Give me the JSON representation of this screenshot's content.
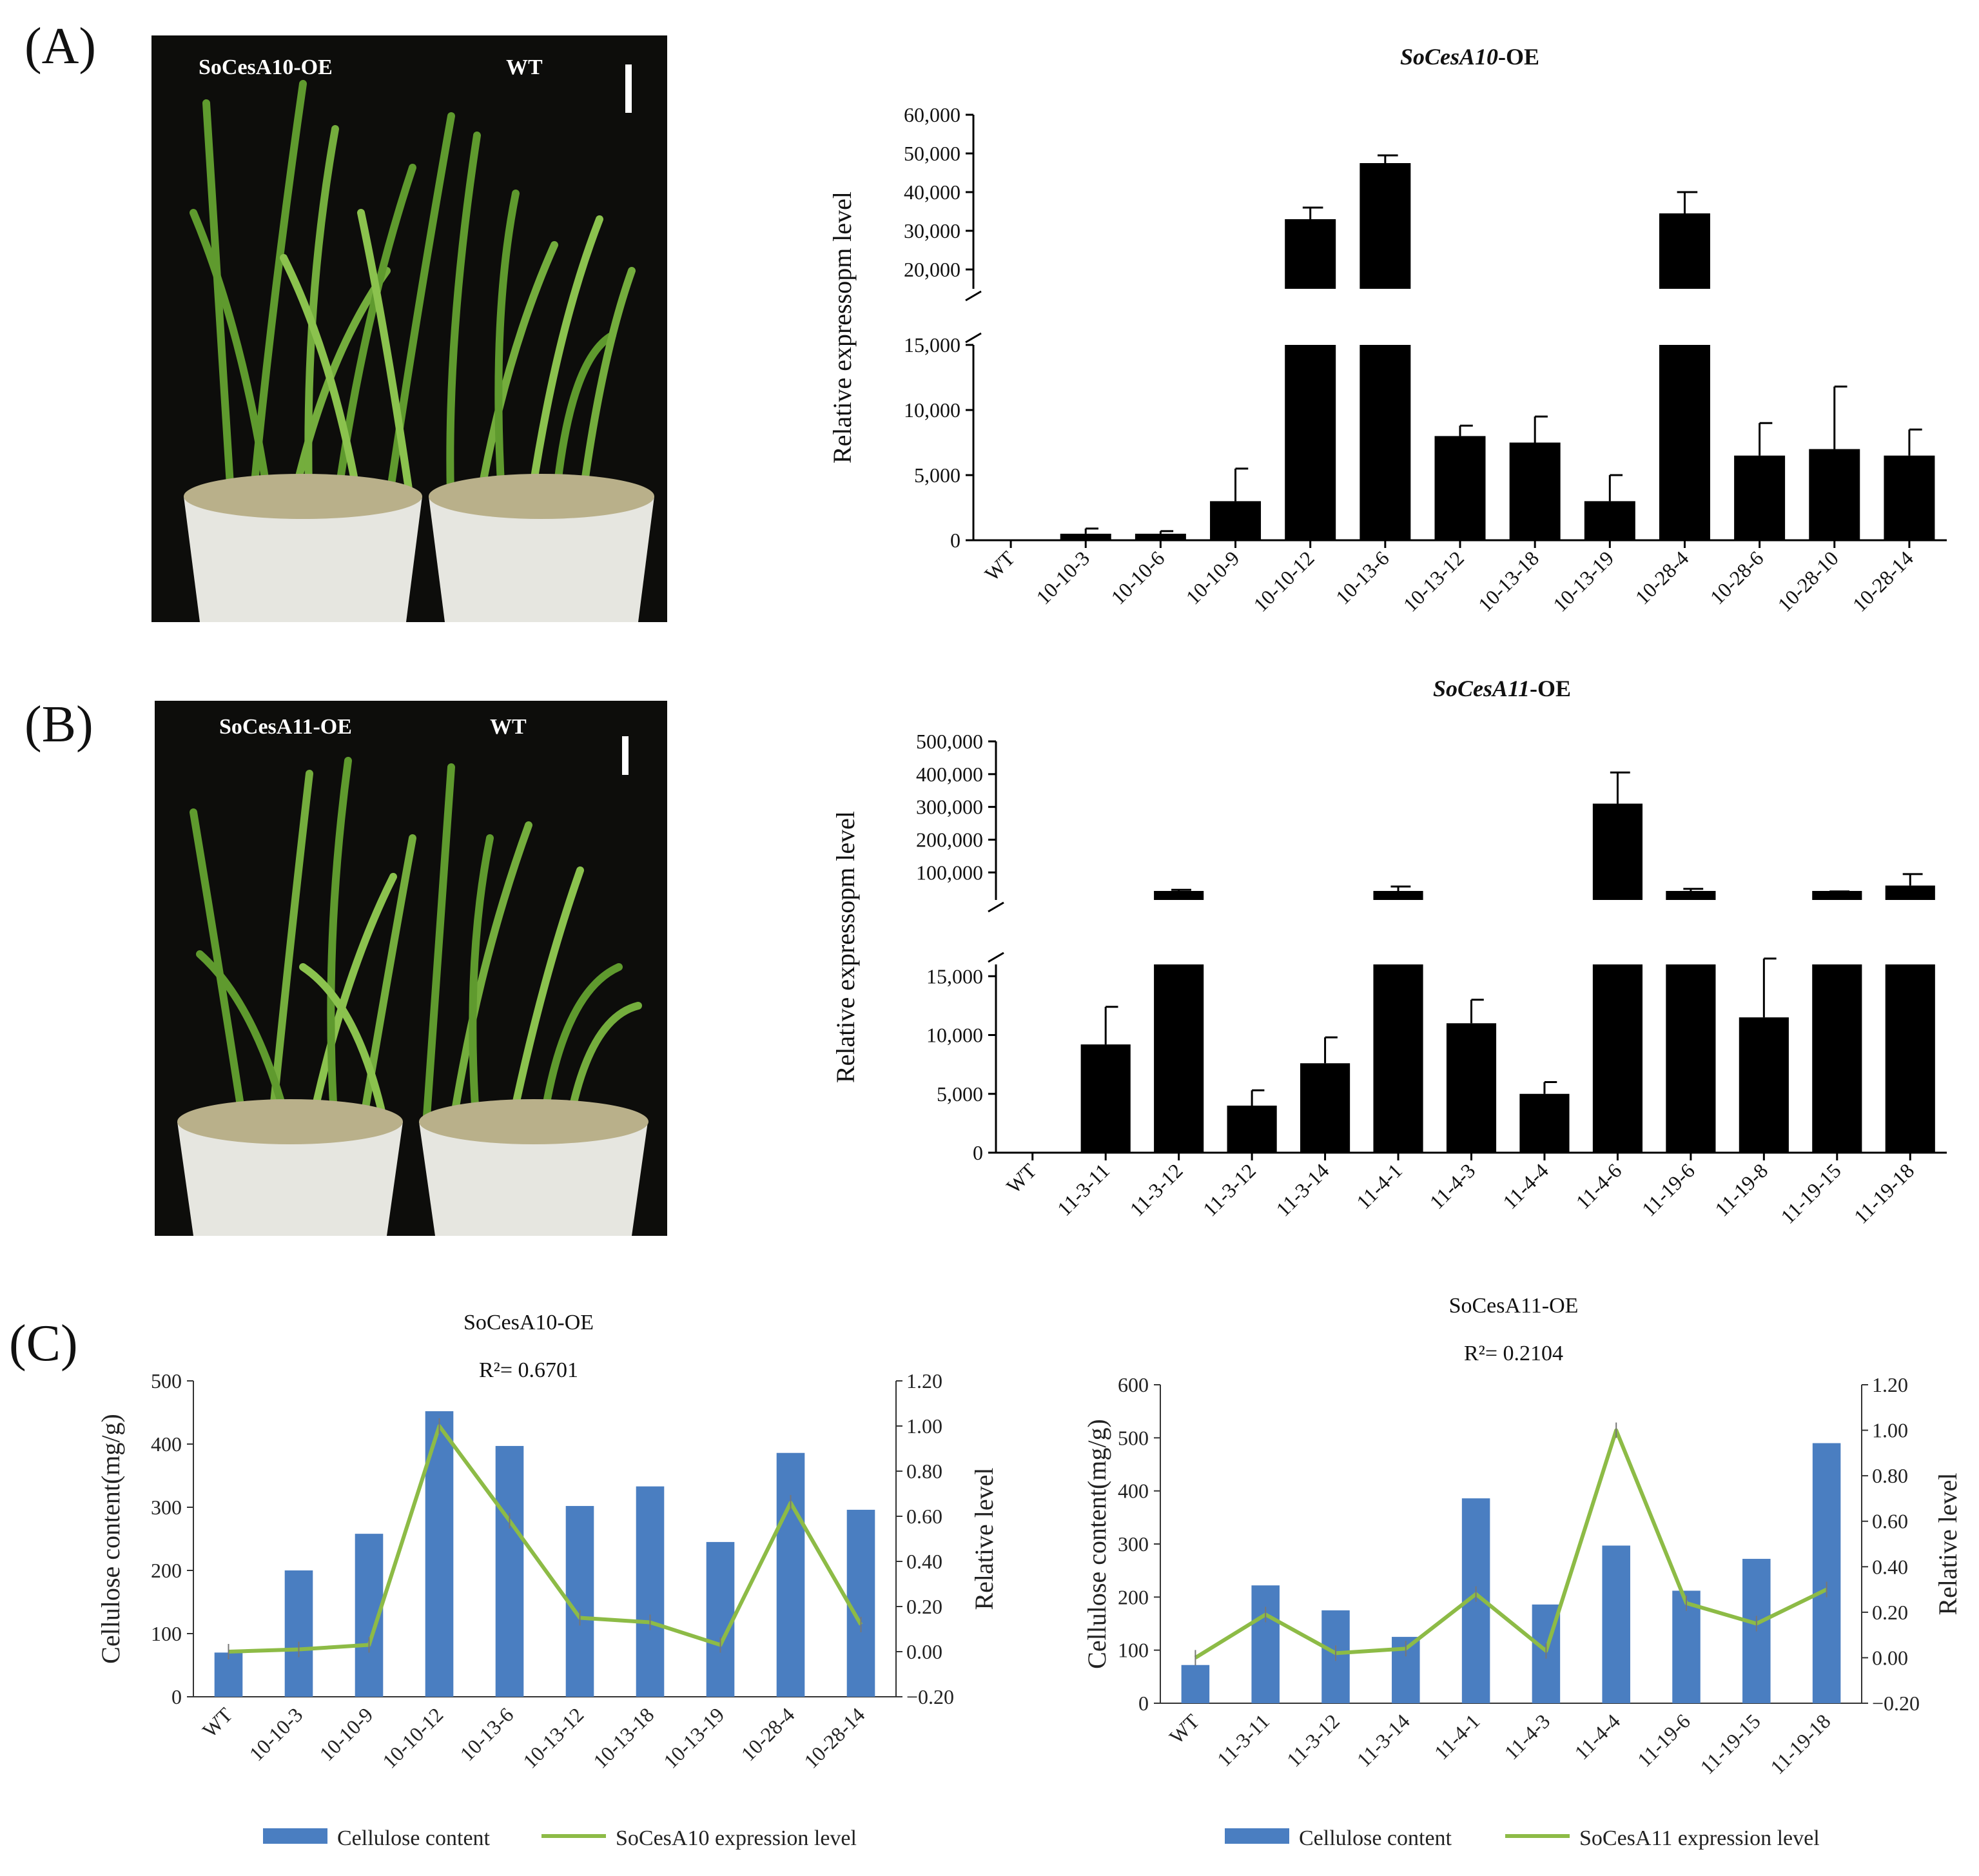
{
  "panels": {
    "a_label": "(A)",
    "b_label": "(B)",
    "c_label": "(C)"
  },
  "photos": {
    "a": {
      "left_label": "SoCesA10-OE",
      "right_label": "WT"
    },
    "b": {
      "left_label": "SoCesA11-OE",
      "right_label": "WT"
    }
  },
  "colors": {
    "bar_black": "#000000",
    "bar_blue": "#4a7ec1",
    "line_green": "#8dbb46",
    "photo_bg": "#0d0d0b"
  },
  "chart_data": [
    {
      "id": "A",
      "type": "bar",
      "title_italic": "SoCesA10",
      "title_suffix": "-OE",
      "ylabel": "Relative expressopm level",
      "broken_axis": true,
      "lower_range": [
        0,
        15000
      ],
      "upper_range": [
        15000,
        60000
      ],
      "lower_ticks": [
        "0",
        "5,000",
        "10,000",
        "15,000"
      ],
      "upper_ticks": [
        "20,000",
        "30,000",
        "40,000",
        "50,000",
        "60,000"
      ],
      "lower_tick_values": [
        0,
        5000,
        10000,
        15000
      ],
      "upper_tick_values": [
        20000,
        30000,
        40000,
        50000,
        60000
      ],
      "categories": [
        "WT",
        "10-10-3",
        "10-10-6",
        "10-10-9",
        "10-10-12",
        "10-13-6",
        "10-13-12",
        "10-13-18",
        "10-13-19",
        "10-28-4",
        "10-28-6",
        "10-28-10",
        "10-28-14"
      ],
      "values": [
        0,
        500,
        500,
        3000,
        33000,
        47500,
        8000,
        7500,
        3000,
        34500,
        6500,
        7000,
        6500
      ],
      "errors": [
        0,
        400,
        200,
        2500,
        3000,
        2000,
        800,
        2000,
        2000,
        5500,
        2500,
        4800,
        2000
      ]
    },
    {
      "id": "B",
      "type": "bar",
      "title_italic": "SoCesA11",
      "title_suffix": "-OE",
      "ylabel": "Relative expressopm level",
      "broken_axis": true,
      "lower_range": [
        0,
        16000
      ],
      "upper_range": [
        16000,
        500000
      ],
      "lower_ticks": [
        "0",
        "5,000",
        "10,000",
        "15,000"
      ],
      "upper_ticks": [
        "100,000",
        "200,000",
        "300,000",
        "400,000",
        "500,000"
      ],
      "lower_tick_values": [
        0,
        5000,
        10000,
        15000
      ],
      "upper_tick_values": [
        100000,
        200000,
        300000,
        400000,
        500000
      ],
      "categories": [
        "WT",
        "11-3-11",
        "11-3-12",
        "11-3-12",
        "11-3-14",
        "11-4-1",
        "11-4-3",
        "11-4-4",
        "11-4-6",
        "11-19-6",
        "11-19-8",
        "11-19-15",
        "11-19-18"
      ],
      "values": [
        0,
        9200,
        32000,
        4000,
        7600,
        42000,
        11000,
        5000,
        310000,
        35000,
        11500,
        30000,
        60000
      ],
      "errors": [
        0,
        3200,
        15000,
        1300,
        2200,
        15000,
        2000,
        1000,
        95000,
        15000,
        5000,
        12000,
        35000
      ]
    },
    {
      "id": "C-left",
      "type": "bar+line",
      "title": "SoCesA10-OE",
      "r_squared": "R²= 0.6701",
      "ylabel_left": "Cellulose content(mg/g)",
      "ylabel_right": "Relative level",
      "ylim_left": [
        0,
        500
      ],
      "ylim_right": [
        -0.2,
        1.2
      ],
      "left_ticks": [
        "0",
        "100",
        "200",
        "300",
        "400",
        "500"
      ],
      "right_ticks": [
        "−0.20",
        "0.00",
        "0.20",
        "0.40",
        "0.60",
        "0.80",
        "1.00",
        "1.20"
      ],
      "categories": [
        "WT",
        "10-10-3",
        "10-10-9",
        "10-10-12",
        "10-13-6",
        "10-13-12",
        "10-13-18",
        "10-13-19",
        "10-28-4",
        "10-28-14"
      ],
      "series": [
        {
          "name": "Cellulose content",
          "kind": "bar",
          "values": [
            70,
            200,
            258,
            452,
            397,
            302,
            333,
            245,
            386,
            296
          ]
        },
        {
          "name": "SoCesA10 expression level",
          "kind": "line",
          "values": [
            0.0,
            0.01,
            0.03,
            1.0,
            0.58,
            0.15,
            0.13,
            0.03,
            0.66,
            0.12
          ]
        }
      ]
    },
    {
      "id": "C-right",
      "type": "bar+line",
      "title": "SoCesA11-OE",
      "r_squared": "R²= 0.2104",
      "ylabel_left": "Cellulose content(mg/g)",
      "ylabel_right": "Relative level",
      "ylim_left": [
        0,
        600
      ],
      "ylim_right": [
        -0.2,
        1.2
      ],
      "left_ticks": [
        "0",
        "100",
        "200",
        "300",
        "400",
        "500",
        "600"
      ],
      "right_ticks": [
        "−0.20",
        "0.00",
        "0.20",
        "0.40",
        "0.60",
        "0.80",
        "1.00",
        "1.20"
      ],
      "categories": [
        "WT",
        "11-3-11",
        "11-3-12",
        "11-3-14",
        "11-4-1",
        "11-4-3",
        "11-4-4",
        "11-19-6",
        "11-19-15",
        "11-19-18"
      ],
      "series": [
        {
          "name": "Cellulose content",
          "kind": "bar",
          "values": [
            72,
            222,
            175,
            125,
            386,
            186,
            297,
            212,
            272,
            490
          ]
        },
        {
          "name": "SoCesA11 expression level",
          "kind": "line",
          "values": [
            0.0,
            0.19,
            0.02,
            0.04,
            0.28,
            0.03,
            1.0,
            0.24,
            0.15,
            0.3
          ]
        }
      ]
    }
  ]
}
